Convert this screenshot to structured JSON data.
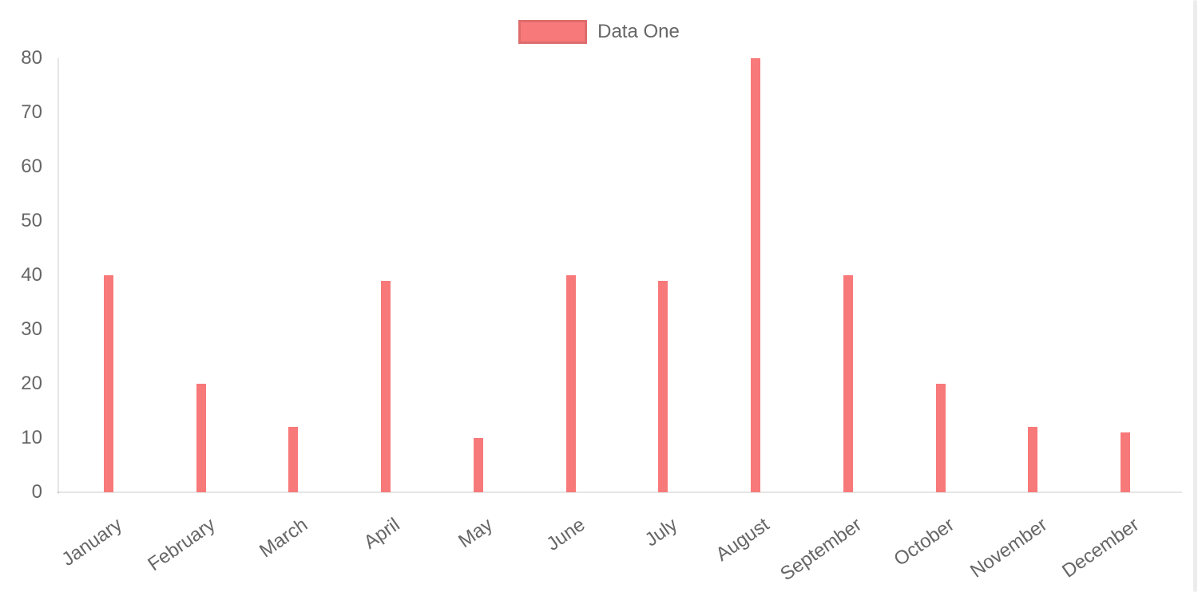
{
  "chart_data": {
    "type": "bar",
    "title": "",
    "categories": [
      "January",
      "February",
      "March",
      "April",
      "May",
      "June",
      "July",
      "August",
      "September",
      "October",
      "November",
      "December"
    ],
    "series": [
      {
        "name": "Data One",
        "color": "#f87979",
        "values": [
          40,
          20,
          12,
          39,
          10,
          40,
          39,
          80,
          40,
          20,
          12,
          11
        ]
      }
    ],
    "xlabel": "",
    "ylabel": "",
    "ylim": [
      0,
      80
    ],
    "y_ticks": [
      0,
      10,
      20,
      30,
      40,
      50,
      60,
      70,
      80
    ],
    "grid": false,
    "legend_position": "top",
    "x_tick_rotation_deg": -35,
    "colors": {
      "axis_line": "rgba(0,0,0,0.10)",
      "tick_text": "#666666",
      "legend_swatch_border": "rgba(0,0,0,0.10)",
      "background": "#ffffff",
      "scrollbar": "#ececec"
    }
  }
}
